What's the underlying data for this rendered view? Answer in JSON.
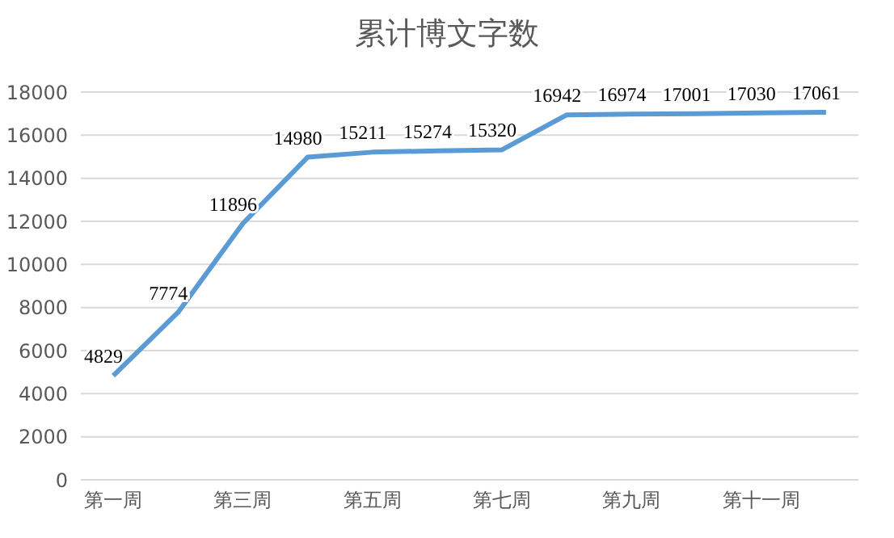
{
  "chart_data": {
    "type": "line",
    "title": "累计博文字数",
    "categories": [
      "第一周",
      null,
      "第三周",
      null,
      "第五周",
      null,
      "第七周",
      null,
      "第九周",
      null,
      "第十一周",
      null
    ],
    "values": [
      4829,
      7774,
      11896,
      14980,
      15211,
      15274,
      15320,
      16942,
      16974,
      17001,
      17030,
      17061
    ],
    "color": "#5b9bd5",
    "ylim": [
      0,
      18000
    ],
    "yticks": [
      0,
      2000,
      4000,
      6000,
      8000,
      10000,
      12000,
      14000,
      16000,
      18000
    ],
    "grid": "y",
    "data_labels": true,
    "marker": "none"
  }
}
